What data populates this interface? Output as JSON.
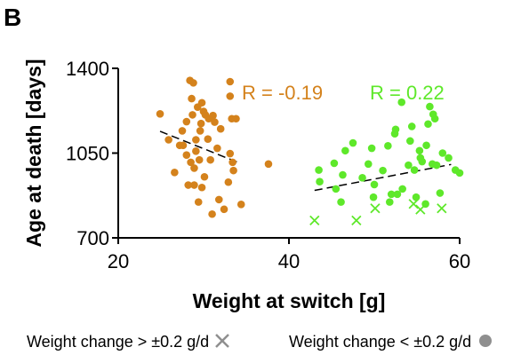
{
  "panel_label": "B",
  "legend": {
    "cross_label": "Weight change > ±0.2 g/d",
    "dot_label": "Weight change < ±0.2 g/d"
  },
  "chart_data": {
    "type": "scatter",
    "xlabel": "Weight at switch [g]",
    "ylabel": "Age at death [days]",
    "xlim": [
      20,
      60
    ],
    "ylim": [
      700,
      1400
    ],
    "xticks": [
      20,
      40,
      60
    ],
    "yticks": [
      700,
      1050,
      1400
    ],
    "grid": false,
    "legend_position": "bottom",
    "series": [
      {
        "color": "#d4821c",
        "annotation": "R = -0.19",
        "points": [
          [
            24.9,
            1212
          ],
          [
            25.9,
            1105
          ],
          [
            26.6,
            970
          ],
          [
            27.2,
            1082
          ],
          [
            27.5,
            1142
          ],
          [
            27.6,
            1082
          ],
          [
            28.0,
            1180
          ],
          [
            28.0,
            1042
          ],
          [
            28.2,
            918
          ],
          [
            28.4,
            1350
          ],
          [
            28.5,
            1012
          ],
          [
            28.6,
            1275
          ],
          [
            28.7,
            1208
          ],
          [
            28.8,
            1340
          ],
          [
            28.9,
            918
          ],
          [
            28.9,
            988
          ],
          [
            29.1,
            1058
          ],
          [
            29.1,
            1105
          ],
          [
            29.3,
            1240
          ],
          [
            29.4,
            848
          ],
          [
            29.5,
            1022
          ],
          [
            29.6,
            1142
          ],
          [
            29.7,
            1172
          ],
          [
            29.8,
            1258
          ],
          [
            29.8,
            908
          ],
          [
            30.0,
            1222
          ],
          [
            30.1,
            952
          ],
          [
            30.2,
            1208
          ],
          [
            30.5,
            1108
          ],
          [
            30.6,
            1192
          ],
          [
            30.8,
            1022
          ],
          [
            31.0,
            798
          ],
          [
            31.1,
            1205
          ],
          [
            31.3,
            1178
          ],
          [
            31.6,
            1070
          ],
          [
            31.8,
            858
          ],
          [
            32.0,
            1150
          ],
          [
            32.4,
            818
          ],
          [
            32.9,
            930
          ],
          [
            33.1,
            1345
          ],
          [
            33.1,
            1048
          ],
          [
            33.1,
            1285
          ],
          [
            33.3,
            1192
          ],
          [
            33.4,
            1012
          ],
          [
            33.5,
            978
          ],
          [
            33.8,
            1192
          ],
          [
            34.4,
            838
          ],
          [
            37.6,
            1005
          ]
        ],
        "trend": [
          [
            24.9,
            1140
          ],
          [
            34.0,
            1012
          ]
        ]
      },
      {
        "color": "#5ee82a",
        "annotation": "R = 0.22",
        "points": [
          [
            43.5,
            980
          ],
          [
            43.6,
            932
          ],
          [
            45.3,
            1008
          ],
          [
            45.5,
            902
          ],
          [
            46.1,
            848
          ],
          [
            46.3,
            960
          ],
          [
            46.6,
            1060
          ],
          [
            47.5,
            1092
          ],
          [
            48.6,
            948
          ],
          [
            49.3,
            1005
          ],
          [
            49.7,
            1070
          ],
          [
            49.9,
            868
          ],
          [
            50.0,
            920
          ],
          [
            51.0,
            978
          ],
          [
            51.6,
            1080
          ],
          [
            51.8,
            848
          ],
          [
            52.0,
            880
          ],
          [
            52.4,
            1130
          ],
          [
            52.5,
            1148
          ],
          [
            52.7,
            880
          ],
          [
            53.2,
            1260
          ],
          [
            53.3,
            902
          ],
          [
            54.0,
            1000
          ],
          [
            54.2,
            1100
          ],
          [
            54.4,
            1160
          ],
          [
            54.7,
            980
          ],
          [
            54.9,
            868
          ],
          [
            55.3,
            1060
          ],
          [
            55.4,
            1030
          ],
          [
            55.6,
            1015
          ],
          [
            56.0,
            840
          ],
          [
            56.1,
            1082
          ],
          [
            56.3,
            1170
          ],
          [
            56.5,
            1242
          ],
          [
            56.8,
            1005
          ],
          [
            56.9,
            1210
          ],
          [
            57.1,
            1192
          ],
          [
            57.3,
            1000
          ],
          [
            57.7,
            885
          ],
          [
            58.0,
            1050
          ],
          [
            58.7,
            1030
          ],
          [
            59.5,
            980
          ],
          [
            60.0,
            968
          ]
        ],
        "crosses": [
          [
            43.0,
            772
          ],
          [
            47.9,
            772
          ],
          [
            50.1,
            822
          ],
          [
            54.6,
            840
          ],
          [
            55.4,
            817
          ],
          [
            57.9,
            822
          ]
        ],
        "trend": [
          [
            43.0,
            896
          ],
          [
            59.0,
            1003
          ]
        ]
      }
    ]
  }
}
